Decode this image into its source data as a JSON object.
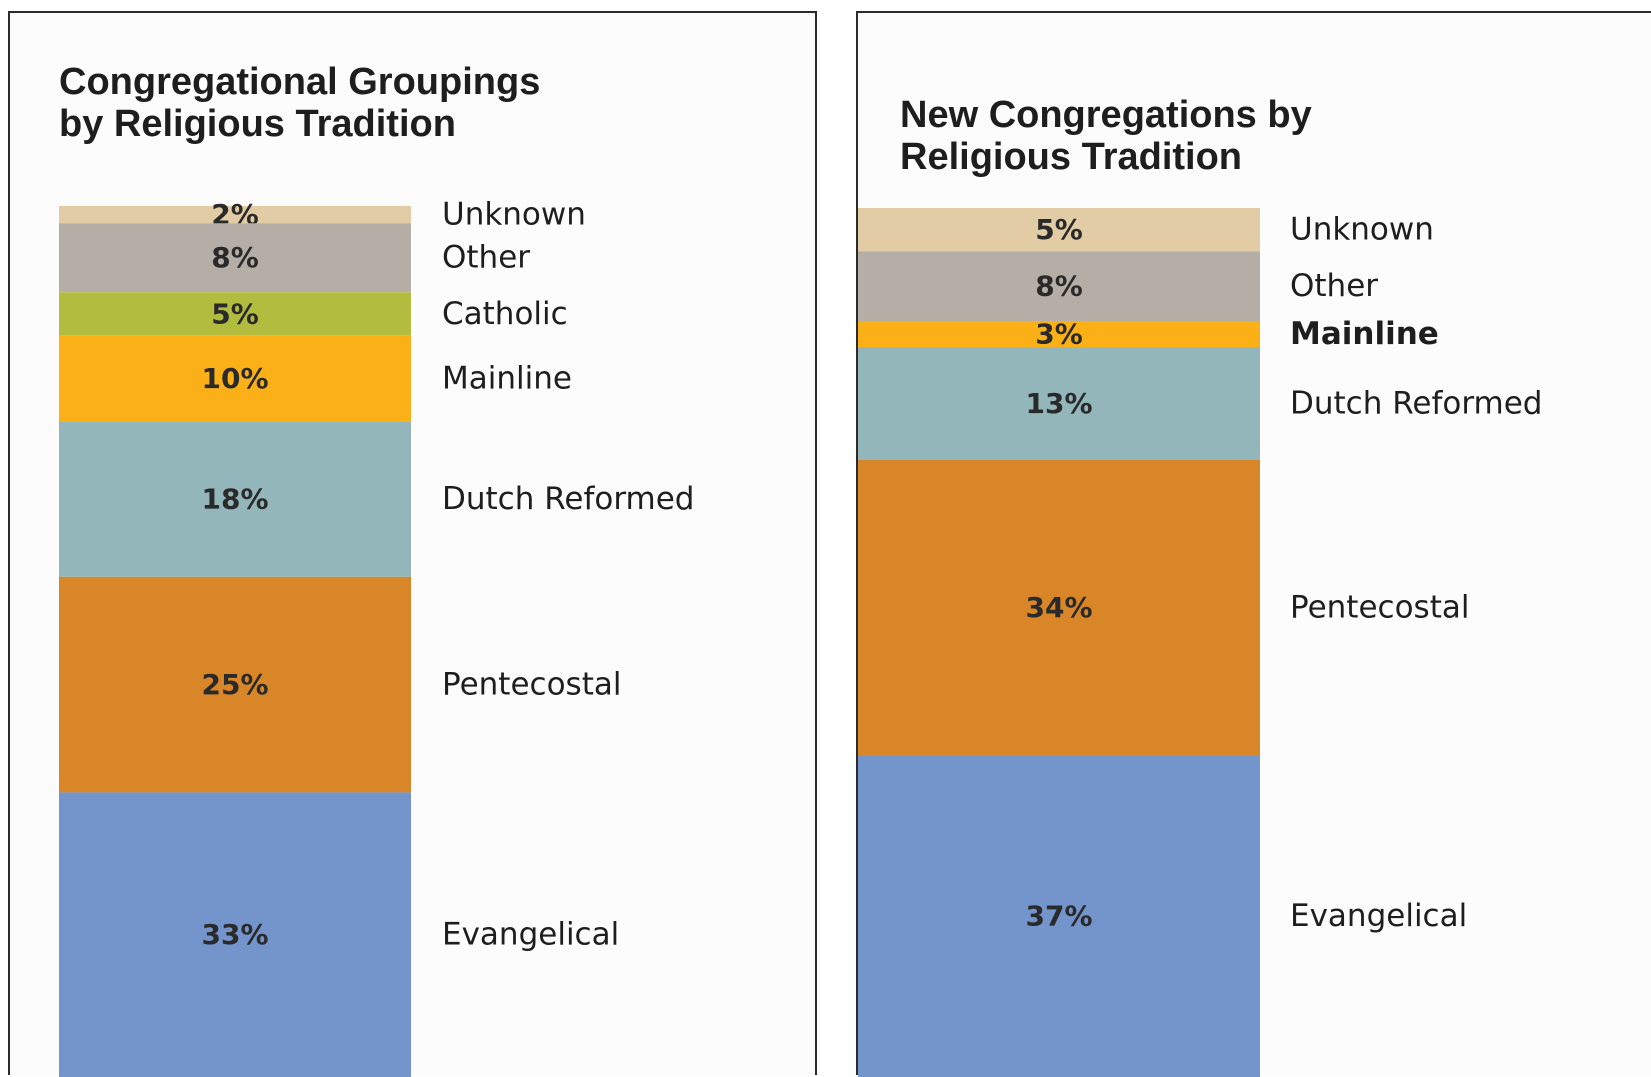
{
  "chart_data": [
    {
      "type": "bar",
      "title": "Congregational Groupings by Religious Tradition",
      "stacked": true,
      "segments": [
        {
          "name": "Unknown",
          "value": 2,
          "label": "2%",
          "color": "#e1cca5"
        },
        {
          "name": "Other",
          "value": 8,
          "label": "8%",
          "color": "#b5aea7"
        },
        {
          "name": "Catholic",
          "value": 5,
          "label": "5%",
          "color": "#b2bd3f"
        },
        {
          "name": "Mainline",
          "value": 10,
          "label": "10%",
          "color": "#fbb017"
        },
        {
          "name": "Dutch Reformed",
          "value": 18,
          "label": "18%",
          "color": "#92b6ba"
        },
        {
          "name": "Pentecostal",
          "value": 25,
          "label": "25%",
          "color": "#d88628"
        },
        {
          "name": "Evangelical",
          "value": 33,
          "label": "33%",
          "color": "#7495cb"
        }
      ]
    },
    {
      "type": "bar",
      "title": "New Congregations by Religious Tradition",
      "stacked": true,
      "segments": [
        {
          "name": "Unknown",
          "value": 5,
          "label": "5%",
          "color": "#e1cca5"
        },
        {
          "name": "Other",
          "value": 8,
          "label": "8%",
          "color": "#b5aea7"
        },
        {
          "name": "Mainline",
          "value": 3,
          "label": "3%",
          "color": "#fbb017",
          "emphasis": true
        },
        {
          "name": "Dutch Reformed",
          "value": 13,
          "label": "13%",
          "color": "#92b6ba"
        },
        {
          "name": "Pentecostal",
          "value": 34,
          "label": "34%",
          "color": "#d88628"
        },
        {
          "name": "Evangelical",
          "value": 37,
          "label": "37%",
          "color": "#7495cb"
        }
      ]
    }
  ]
}
